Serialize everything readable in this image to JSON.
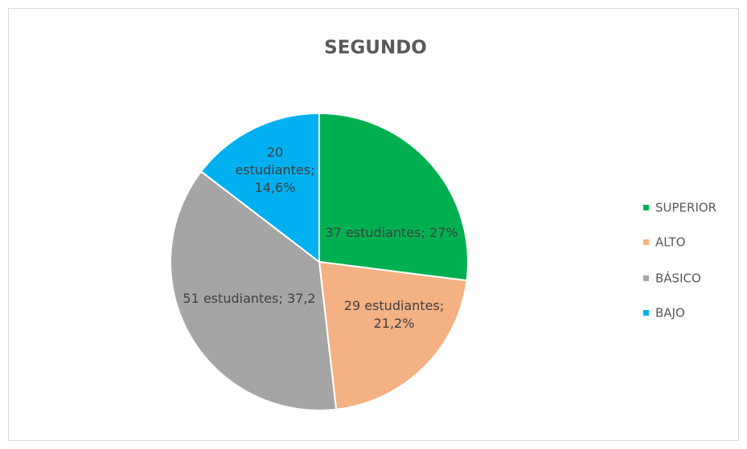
{
  "chart_data": {
    "type": "pie",
    "title": "SEGUNDO",
    "categories": [
      "SUPERIOR",
      "ALTO",
      "BÁSICO",
      "BAJO"
    ],
    "values": [
      37,
      29,
      51,
      20
    ],
    "value_labels": [
      "37 estudiantes; 27%",
      "29 estudiantes; 21,2%",
      "51 estudiantes; 37,2",
      "20 estudiantes; 14,6%"
    ],
    "colors": [
      "#00b050",
      "#f4b183",
      "#a5a5a5",
      "#00b0f0"
    ],
    "legend": "right"
  }
}
